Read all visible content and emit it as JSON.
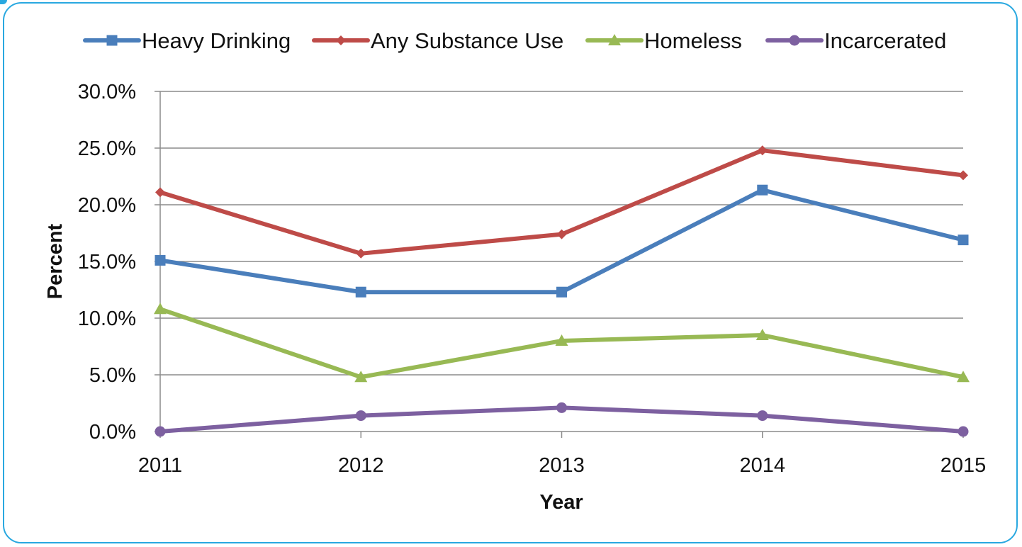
{
  "chart_data": {
    "type": "line",
    "xlabel": "Year",
    "ylabel": "Percent",
    "x": [
      "2011",
      "2012",
      "2013",
      "2014",
      "2015"
    ],
    "ylim": [
      0,
      30
    ],
    "yticks": [
      "0.0%",
      "5.0%",
      "10.0%",
      "15.0%",
      "20.0%",
      "25.0%",
      "30.0%"
    ],
    "ytick_values": [
      0,
      5,
      10,
      15,
      20,
      25,
      30
    ],
    "grid": "horizontal",
    "legend_position": "top",
    "series": [
      {
        "name": "Heavy Drinking",
        "values": [
          15.1,
          12.3,
          12.3,
          21.3,
          16.9
        ],
        "color": "#4a7ebb",
        "marker": "square"
      },
      {
        "name": "Any Substance Use",
        "values": [
          21.1,
          15.7,
          17.4,
          24.8,
          22.6
        ],
        "color": "#be4b48",
        "marker": "diamond"
      },
      {
        "name": "Homeless",
        "values": [
          10.8,
          4.8,
          8.0,
          8.5,
          4.8
        ],
        "color": "#98b954",
        "marker": "triangle"
      },
      {
        "name": "Incarcerated",
        "values": [
          0.0,
          1.4,
          2.1,
          1.4,
          0.0
        ],
        "color": "#7d60a0",
        "marker": "circle"
      }
    ]
  }
}
